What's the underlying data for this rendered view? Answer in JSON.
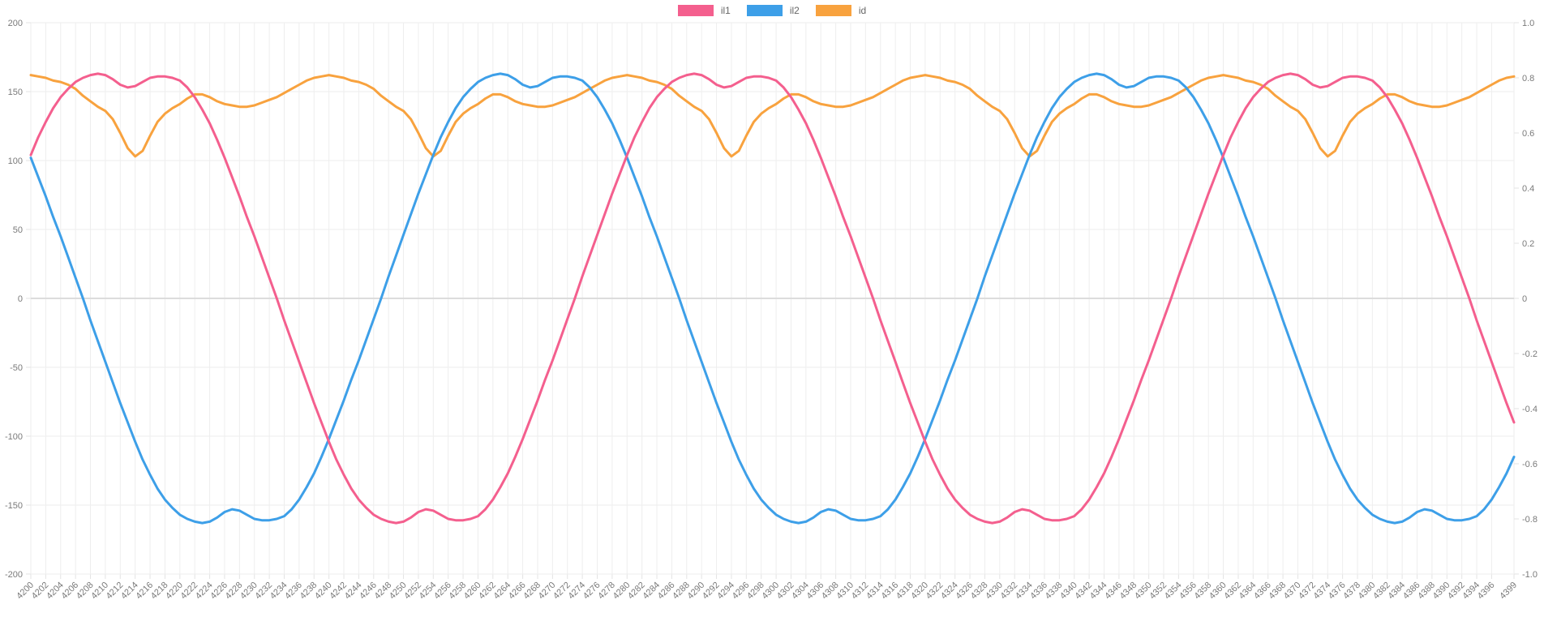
{
  "legend": {
    "items": [
      {
        "label": "il1",
        "color": "#f45f8e"
      },
      {
        "label": "il2",
        "color": "#3d9fe8"
      },
      {
        "label": "id",
        "color": "#f8a23e"
      }
    ]
  },
  "axes": {
    "left": {
      "ticks": [
        "200",
        "150",
        "100",
        "50",
        "0",
        "-50",
        "-100",
        "-150",
        "-200"
      ]
    },
    "right": {
      "ticks": [
        "1.0",
        "0.8",
        "0.6",
        "0.4",
        "0.2",
        "0",
        "-0.2",
        "-0.4",
        "-0.6",
        "-0.8",
        "-1.0"
      ]
    },
    "x": {
      "labels": [
        "4200",
        "4202",
        "4204",
        "4206",
        "4208",
        "4210",
        "4212",
        "4214",
        "4216",
        "4218",
        "4220",
        "4222",
        "4224",
        "4226",
        "4228",
        "4230",
        "4232",
        "4234",
        "4236",
        "4238",
        "4240",
        "4242",
        "4244",
        "4246",
        "4248",
        "4250",
        "4252",
        "4254",
        "4256",
        "4258",
        "4260",
        "4262",
        "4264",
        "4266",
        "4268",
        "4270",
        "4272",
        "4274",
        "4276",
        "4278",
        "4280",
        "4282",
        "4284",
        "4286",
        "4288",
        "4290",
        "4292",
        "4294",
        "4296",
        "4298",
        "4300",
        "4302",
        "4304",
        "4306",
        "4308",
        "4310",
        "4312",
        "4314",
        "4316",
        "4318",
        "4320",
        "4322",
        "4324",
        "4326",
        "4328",
        "4330",
        "4332",
        "4334",
        "4336",
        "4338",
        "4340",
        "4342",
        "4344",
        "4346",
        "4348",
        "4350",
        "4352",
        "4354",
        "4356",
        "4358",
        "4360",
        "4362",
        "4364",
        "4366",
        "4368",
        "4370",
        "4372",
        "4374",
        "4376",
        "4378",
        "4380",
        "4382",
        "4384",
        "4386",
        "4388",
        "4390",
        "4392",
        "4394",
        "4396",
        "4399"
      ]
    }
  },
  "style": {
    "grid_color": "#eeeeee",
    "zero_line_color": "#dcdcdc",
    "border_color": "#e3e3e3",
    "tick_text_color": "#7a7a7a",
    "tick_font_size": 11
  },
  "chart_data": {
    "type": "line",
    "x_start": 4200,
    "x_end": 4399,
    "x_step": 1,
    "left_ylim": [
      -200,
      200
    ],
    "right_ylim": [
      -1.0,
      1.0
    ],
    "grid": true,
    "legend_position": "top",
    "series": [
      {
        "name": "il1",
        "color": "#f45f8e",
        "axis": "left",
        "values": [
          104,
          117,
          128,
          138,
          146,
          152,
          157,
          160,
          162,
          163,
          162,
          159,
          155,
          153,
          154,
          157,
          160,
          161,
          161,
          160,
          158,
          153,
          146,
          137,
          127,
          115,
          102,
          88,
          74,
          59,
          45,
          30,
          15,
          0,
          -16,
          -31,
          -46,
          -61,
          -76,
          -90,
          -104,
          -117,
          -128,
          -138,
          -146,
          -152,
          -157,
          -160,
          -162,
          -163,
          -162,
          -159,
          -155,
          -153,
          -154,
          -157,
          -160,
          -161,
          -161,
          -160,
          -158,
          -153,
          -146,
          -137,
          -127,
          -115,
          -102,
          -88,
          -74,
          -59,
          -45,
          -30,
          -15,
          0,
          16,
          31,
          46,
          61,
          76,
          90,
          104,
          117,
          128,
          138,
          146,
          152,
          157,
          160,
          162,
          163,
          162,
          159,
          155,
          153,
          154,
          157,
          160,
          161,
          161,
          160,
          158,
          153,
          146,
          137,
          127,
          115,
          102,
          88,
          74,
          59,
          45,
          30,
          15,
          0,
          -16,
          -31,
          -46,
          -61,
          -76,
          -90,
          -104,
          -117,
          -128,
          -138,
          -146,
          -152,
          -157,
          -160,
          -162,
          -163,
          -162,
          -159,
          -155,
          -153,
          -154,
          -157,
          -160,
          -161,
          -161,
          -160,
          -158,
          -153,
          -146,
          -137,
          -127,
          -115,
          -102,
          -88,
          -74,
          -59,
          -45,
          -30,
          -15,
          0,
          16,
          31,
          46,
          61,
          76,
          90,
          104,
          117,
          128,
          138,
          146,
          152,
          157,
          160,
          162,
          163,
          162,
          159,
          155,
          153,
          154,
          157,
          160,
          161,
          161,
          160,
          158,
          153,
          146,
          137,
          127,
          115,
          102,
          88,
          74,
          59,
          45,
          30,
          15,
          0,
          -16,
          -31,
          -46,
          -61,
          -76,
          -90
        ]
      },
      {
        "name": "il2",
        "color": "#3d9fe8",
        "axis": "left",
        "values": [
          102,
          88,
          74,
          59,
          45,
          30,
          15,
          0,
          -16,
          -31,
          -46,
          -61,
          -76,
          -90,
          -104,
          -117,
          -128,
          -138,
          -146,
          -152,
          -157,
          -160,
          -162,
          -163,
          -162,
          -159,
          -155,
          -153,
          -154,
          -157,
          -160,
          -161,
          -161,
          -160,
          -158,
          -153,
          -146,
          -137,
          -127,
          -115,
          -102,
          -88,
          -74,
          -59,
          -45,
          -30,
          -15,
          0,
          16,
          31,
          46,
          61,
          76,
          90,
          104,
          117,
          128,
          138,
          146,
          152,
          157,
          160,
          162,
          163,
          162,
          159,
          155,
          153,
          154,
          157,
          160,
          161,
          161,
          160,
          158,
          153,
          146,
          137,
          127,
          115,
          102,
          88,
          74,
          59,
          45,
          30,
          15,
          0,
          -16,
          -31,
          -46,
          -61,
          -76,
          -90,
          -104,
          -117,
          -128,
          -138,
          -146,
          -152,
          -157,
          -160,
          -162,
          -163,
          -162,
          -159,
          -155,
          -153,
          -154,
          -157,
          -160,
          -161,
          -161,
          -160,
          -158,
          -153,
          -146,
          -137,
          -127,
          -115,
          -102,
          -88,
          -74,
          -59,
          -45,
          -30,
          -15,
          0,
          16,
          31,
          46,
          61,
          76,
          90,
          104,
          117,
          128,
          138,
          146,
          152,
          157,
          160,
          162,
          163,
          162,
          159,
          155,
          153,
          154,
          157,
          160,
          161,
          161,
          160,
          158,
          153,
          146,
          137,
          127,
          115,
          102,
          88,
          74,
          59,
          45,
          30,
          15,
          0,
          -16,
          -31,
          -46,
          -61,
          -76,
          -90,
          -104,
          -117,
          -128,
          -138,
          -146,
          -152,
          -157,
          -160,
          -162,
          -163,
          -162,
          -159,
          -155,
          -153,
          -154,
          -157,
          -160,
          -161,
          -161,
          -160,
          -158,
          -153,
          -146,
          -137,
          -127,
          -115
        ]
      },
      {
        "name": "id",
        "color": "#f8a23e",
        "axis": "left",
        "values": [
          162,
          161,
          160,
          158,
          157,
          155,
          152,
          147,
          143,
          139,
          136,
          130,
          120,
          109,
          103,
          107,
          118,
          128,
          134,
          138,
          141,
          145,
          148,
          148,
          146,
          143,
          141,
          140,
          139,
          139,
          140,
          142,
          144,
          146,
          149,
          152,
          155,
          158,
          160,
          161,
          162,
          161,
          160,
          158,
          157,
          155,
          152,
          147,
          143,
          139,
          136,
          130,
          120,
          109,
          103,
          107,
          118,
          128,
          134,
          138,
          141,
          145,
          148,
          148,
          146,
          143,
          141,
          140,
          139,
          139,
          140,
          142,
          144,
          146,
          149,
          152,
          155,
          158,
          160,
          161,
          162,
          161,
          160,
          158,
          157,
          155,
          152,
          147,
          143,
          139,
          136,
          130,
          120,
          109,
          103,
          107,
          118,
          128,
          134,
          138,
          141,
          145,
          148,
          148,
          146,
          143,
          141,
          140,
          139,
          139,
          140,
          142,
          144,
          146,
          149,
          152,
          155,
          158,
          160,
          161,
          162,
          161,
          160,
          158,
          157,
          155,
          152,
          147,
          143,
          139,
          136,
          130,
          120,
          109,
          103,
          107,
          118,
          128,
          134,
          138,
          141,
          145,
          148,
          148,
          146,
          143,
          141,
          140,
          139,
          139,
          140,
          142,
          144,
          146,
          149,
          152,
          155,
          158,
          160,
          161,
          162,
          161,
          160,
          158,
          157,
          155,
          152,
          147,
          143,
          139,
          136,
          130,
          120,
          109,
          103,
          107,
          118,
          128,
          134,
          138,
          141,
          145,
          148,
          148,
          146,
          143,
          141,
          140,
          139,
          139,
          140,
          142,
          144,
          146,
          149,
          152,
          155,
          158,
          160,
          161
        ]
      }
    ]
  }
}
